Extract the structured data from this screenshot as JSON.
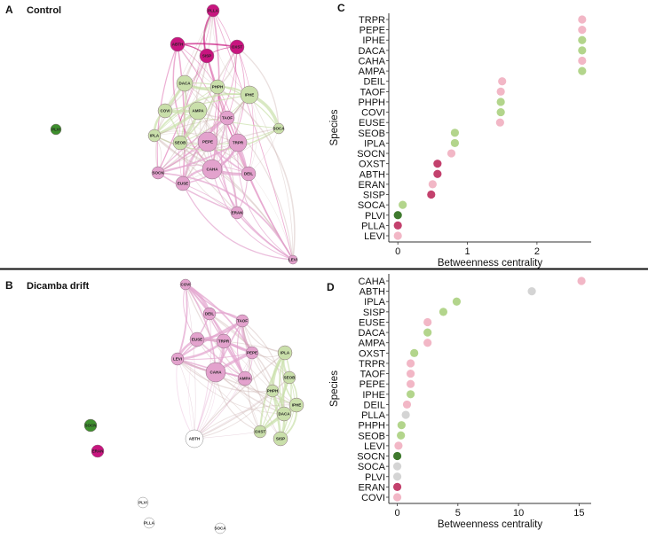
{
  "panels": {
    "a": {
      "letter": "A",
      "title": "Control"
    },
    "b": {
      "letter": "B",
      "title": "Dicamba drift"
    },
    "c": {
      "letter": "C"
    },
    "d": {
      "letter": "D"
    }
  },
  "colors": {
    "net_magenta": "#c8157f",
    "net_pink": "#e3a2cd",
    "net_green": "#c9dfaa",
    "net_darkgreen": "#3e8f2e",
    "net_white": "#ffffff",
    "dot_pink": "#f2b7c6",
    "dot_green": "#b3d58c",
    "dot_magenta": "#c3416d",
    "dot_darkgreen": "#3f7a2e",
    "dot_gray": "#d4d4d4"
  },
  "network_control": {
    "nodes": [
      {
        "id": "PLLA",
        "group": "magenta"
      },
      {
        "id": "ABTH",
        "group": "magenta"
      },
      {
        "id": "OXST",
        "group": "magenta"
      },
      {
        "id": "SISP",
        "group": "magenta"
      },
      {
        "id": "DACA",
        "group": "green"
      },
      {
        "id": "PHPH",
        "group": "green"
      },
      {
        "id": "IPHE",
        "group": "green"
      },
      {
        "id": "COVI",
        "group": "green"
      },
      {
        "id": "AMPA",
        "group": "green"
      },
      {
        "id": "TAOF",
        "group": "pink"
      },
      {
        "id": "SOCA",
        "group": "green"
      },
      {
        "id": "IPLA",
        "group": "green"
      },
      {
        "id": "SEOB",
        "group": "green"
      },
      {
        "id": "PEPE",
        "group": "pink"
      },
      {
        "id": "TRPR",
        "group": "pink"
      },
      {
        "id": "SOCN",
        "group": "pink"
      },
      {
        "id": "CAHA",
        "group": "pink"
      },
      {
        "id": "DEIL",
        "group": "pink"
      },
      {
        "id": "EUSE",
        "group": "pink"
      },
      {
        "id": "ERAN",
        "group": "pink"
      },
      {
        "id": "LEVI",
        "group": "pink"
      },
      {
        "id": "PLVI",
        "group": "darkgreen"
      }
    ]
  },
  "network_dicamba": {
    "nodes": [
      {
        "id": "COVI",
        "group": "pink"
      },
      {
        "id": "DEIL",
        "group": "pink"
      },
      {
        "id": "TAOF",
        "group": "pink"
      },
      {
        "id": "EUSE",
        "group": "pink"
      },
      {
        "id": "TRPR",
        "group": "pink"
      },
      {
        "id": "LEVI",
        "group": "pink"
      },
      {
        "id": "PEPE",
        "group": "pink"
      },
      {
        "id": "IPLA",
        "group": "green"
      },
      {
        "id": "CAHA",
        "group": "pink"
      },
      {
        "id": "AMPA",
        "group": "pink"
      },
      {
        "id": "SEOB",
        "group": "green"
      },
      {
        "id": "PHPH",
        "group": "green"
      },
      {
        "id": "IPHE",
        "group": "green"
      },
      {
        "id": "DACA",
        "group": "green"
      },
      {
        "id": "OXST",
        "group": "green"
      },
      {
        "id": "SISP",
        "group": "green"
      },
      {
        "id": "ABTH",
        "group": "white"
      },
      {
        "id": "SOCN",
        "group": "darkgreen"
      },
      {
        "id": "ERAN",
        "group": "magenta"
      },
      {
        "id": "PLVI",
        "group": "white"
      },
      {
        "id": "PLLA",
        "group": "white"
      },
      {
        "id": "SOCA",
        "group": "white"
      }
    ]
  },
  "chart_data": [
    {
      "panel": "C",
      "type": "scatter",
      "title": "",
      "xlabel": "Betweenness centrality",
      "ylabel": "Species",
      "xlim": [
        -0.13,
        2.78
      ],
      "xticks": [
        0,
        1,
        2
      ],
      "categories": [
        "TRPR",
        "PEPE",
        "IPHE",
        "DACA",
        "CAHA",
        "AMPA",
        "DEIL",
        "TAOF",
        "PHPH",
        "COVI",
        "EUSE",
        "SEOB",
        "IPLA",
        "SOCN",
        "OXST",
        "ABTH",
        "ERAN",
        "SISP",
        "SOCA",
        "PLVI",
        "PLLA",
        "LEVI"
      ],
      "values": [
        2.65,
        2.65,
        2.65,
        2.65,
        2.65,
        2.65,
        1.5,
        1.48,
        1.48,
        1.48,
        1.47,
        0.82,
        0.82,
        0.77,
        0.57,
        0.57,
        0.5,
        0.48,
        0.07,
        0,
        0,
        0
      ],
      "groups": [
        "pink",
        "pink",
        "green",
        "green",
        "pink",
        "green",
        "pink",
        "pink",
        "green",
        "green",
        "pink",
        "green",
        "green",
        "pink",
        "magenta",
        "magenta",
        "pink",
        "magenta",
        "green",
        "darkgreen",
        "magenta",
        "pink"
      ]
    },
    {
      "panel": "D",
      "type": "scatter",
      "title": "",
      "xlabel": "Betweenness centrality",
      "ylabel": "Species",
      "xlim": [
        -0.7,
        16.0
      ],
      "xticks": [
        0,
        5,
        10,
        15
      ],
      "categories": [
        "CAHA",
        "ABTH",
        "IPLA",
        "SISP",
        "EUSE",
        "DACA",
        "AMPA",
        "OXST",
        "TRPR",
        "TAOF",
        "PEPE",
        "IPHE",
        "DEIL",
        "PLLA",
        "PHPH",
        "SEOB",
        "LEVI",
        "SOCN",
        "SOCA",
        "PLVI",
        "ERAN",
        "COVI"
      ],
      "values": [
        15.2,
        11.1,
        4.9,
        3.8,
        2.5,
        2.5,
        2.5,
        1.4,
        1.1,
        1.1,
        1.1,
        1.1,
        0.8,
        0.7,
        0.35,
        0.3,
        0.1,
        0,
        0,
        0,
        0,
        0
      ],
      "groups": [
        "pink",
        "gray",
        "green",
        "green",
        "pink",
        "green",
        "pink",
        "green",
        "pink",
        "pink",
        "pink",
        "green",
        "pink",
        "gray",
        "green",
        "green",
        "pink",
        "darkgreen",
        "gray",
        "gray",
        "magenta",
        "pink"
      ]
    }
  ]
}
